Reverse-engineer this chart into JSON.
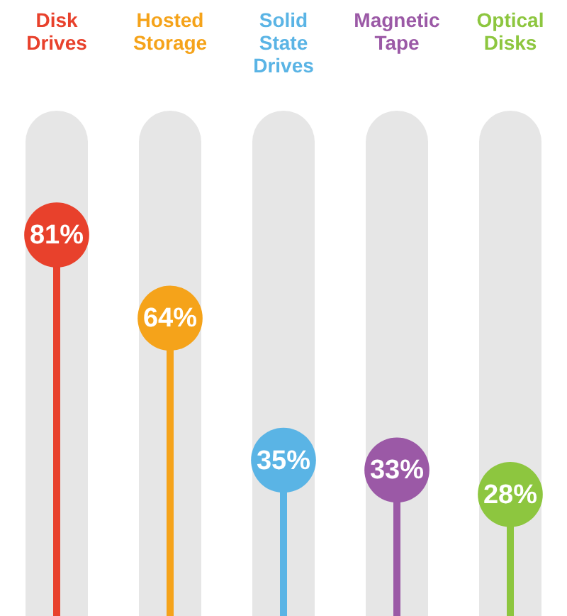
{
  "chart_data": {
    "type": "lollipop",
    "categories": [
      "Disk Drives",
      "Hosted Storage",
      "Solid State Drives",
      "Magnetic Tape",
      "Optical Disks"
    ],
    "values": [
      81,
      64,
      35,
      33,
      28
    ],
    "value_labels": [
      "81%",
      "64%",
      "35%",
      "33%",
      "28%"
    ],
    "colors": [
      "#e8412c",
      "#f5a31a",
      "#5ab4e5",
      "#9b59a6",
      "#8dc63f"
    ],
    "ylim": [
      0,
      100
    ],
    "grid": "x"
  }
}
